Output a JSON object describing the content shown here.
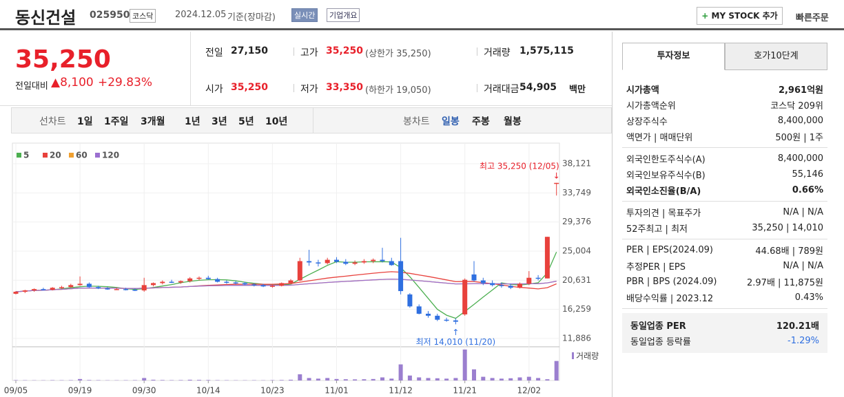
{
  "header": {
    "name": "동신건설",
    "code": "025950",
    "market": "코스닥",
    "date": "2024.12.05",
    "basis": "기준(장마감)",
    "realtime": "실시간",
    "overview": "기업개요",
    "mystock": "MY STOCK 추가",
    "quick": "빠른주문"
  },
  "quote": {
    "price": "35,250",
    "change_label": "전일대비",
    "change": "8,100",
    "change_pct": "+29.83%",
    "fields": [
      {
        "label": "전일",
        "value": "27,150"
      },
      {
        "label": "고가",
        "value": "35,250",
        "note": "(상한가 35,250)"
      },
      {
        "label": "거래량",
        "value": "1,575,115"
      },
      {
        "label": "시가",
        "value": "35,250"
      },
      {
        "label": "저가",
        "value": "33,350",
        "note": "(하한가 19,050)"
      },
      {
        "label": "거래대금",
        "value": "54,905",
        "unit": "백만"
      }
    ]
  },
  "tabs": {
    "periods": [
      "선차트",
      "1일",
      "1주일",
      "3개월",
      "1년",
      "3년",
      "5년",
      "10년"
    ],
    "candles": [
      "봉차트",
      "일봉",
      "주봉",
      "월봉"
    ]
  },
  "chart_data": {
    "type": "candlestick",
    "series": [
      {
        "name": "5",
        "color": "#4caf50"
      },
      {
        "name": "20",
        "color": "#e8413c"
      },
      {
        "name": "60",
        "color": "#f0a030"
      },
      {
        "name": "120",
        "color": "#9b6fd0"
      }
    ],
    "up_color": "#e8413c",
    "down_color": "#2f6fe0",
    "volume_color": "#9b7fcf",
    "categories": [
      "09/05",
      null,
      null,
      null,
      null,
      null,
      null,
      "09/19",
      null,
      null,
      null,
      null,
      null,
      null,
      "09/30",
      null,
      null,
      null,
      null,
      null,
      null,
      "10/14",
      null,
      null,
      null,
      null,
      null,
      null,
      "10/23",
      null,
      null,
      null,
      null,
      null,
      null,
      "11/01",
      null,
      null,
      null,
      null,
      null,
      null,
      "11/12",
      null,
      null,
      null,
      null,
      null,
      null,
      "11/21",
      null,
      null,
      null,
      null,
      null,
      null,
      "12/02",
      null,
      null,
      null
    ],
    "candles": [
      [
        18600,
        19000,
        18500,
        18900
      ],
      [
        18900,
        19200,
        18700,
        19100
      ],
      [
        19100,
        19400,
        18900,
        19300
      ],
      [
        19300,
        19500,
        19100,
        19200
      ],
      [
        19200,
        19600,
        19100,
        19500
      ],
      [
        19500,
        19800,
        19300,
        19600
      ],
      [
        19600,
        20100,
        19500,
        19900
      ],
      [
        19900,
        21200,
        19800,
        20100
      ],
      [
        20100,
        20300,
        19500,
        19600
      ],
      [
        19600,
        19800,
        19300,
        19400
      ],
      [
        19400,
        19600,
        19200,
        19300
      ],
      [
        19300,
        19500,
        19200,
        19300
      ],
      [
        19300,
        19500,
        19100,
        19200
      ],
      [
        19200,
        19400,
        19000,
        19100
      ],
      [
        19100,
        21000,
        18900,
        19900
      ],
      [
        19900,
        20300,
        19700,
        20200
      ],
      [
        20200,
        20600,
        20000,
        20400
      ],
      [
        20400,
        20700,
        20200,
        20300
      ],
      [
        20300,
        20600,
        20100,
        20500
      ],
      [
        20500,
        21100,
        20300,
        20900
      ],
      [
        20900,
        21200,
        20600,
        21000
      ],
      [
        21000,
        21300,
        20700,
        20800
      ],
      [
        20800,
        21000,
        20300,
        20400
      ],
      [
        20400,
        20600,
        20100,
        20300
      ],
      [
        20300,
        20500,
        20000,
        20200
      ],
      [
        20200,
        20400,
        19900,
        20000
      ],
      [
        20000,
        20200,
        19700,
        19900
      ],
      [
        19900,
        20100,
        19600,
        19700
      ],
      [
        19700,
        20000,
        19500,
        19800
      ],
      [
        19800,
        20300,
        19700,
        20200
      ],
      [
        20200,
        20800,
        20100,
        20600
      ],
      [
        20600,
        24000,
        20500,
        23500
      ],
      [
        23500,
        25200,
        22800,
        23300
      ],
      [
        23300,
        23700,
        22700,
        23200
      ],
      [
        23200,
        24000,
        23000,
        23700
      ],
      [
        23700,
        24100,
        23200,
        23400
      ],
      [
        23400,
        23800,
        22900,
        23100
      ],
      [
        23100,
        23600,
        22900,
        23300
      ],
      [
        23300,
        23800,
        23100,
        23500
      ],
      [
        23500,
        23900,
        23200,
        23700
      ],
      [
        23700,
        25500,
        23300,
        23500
      ],
      [
        23500,
        24000,
        22800,
        22900
      ],
      [
        23500,
        27000,
        18500,
        19000
      ],
      [
        18500,
        18700,
        16500,
        16700
      ],
      [
        16700,
        17000,
        15500,
        15600
      ],
      [
        15600,
        16000,
        15000,
        15300
      ],
      [
        15300,
        15600,
        14500,
        14700
      ],
      [
        14700,
        15000,
        14400,
        14600
      ],
      [
        14600,
        14900,
        14010,
        14400
      ],
      [
        15500,
        20900,
        15300,
        20700
      ],
      [
        21500,
        23500,
        20400,
        20600
      ],
      [
        20600,
        21000,
        19900,
        20200
      ],
      [
        20200,
        20600,
        19700,
        19900
      ],
      [
        19900,
        20300,
        19500,
        19800
      ],
      [
        19800,
        20100,
        19300,
        19500
      ],
      [
        19500,
        20300,
        19400,
        20100
      ],
      [
        20100,
        22000,
        19900,
        21000
      ],
      [
        21000,
        21400,
        20600,
        20900
      ],
      [
        20900,
        27150,
        20900,
        27150
      ],
      [
        35250,
        35250,
        33350,
        35250
      ]
    ],
    "volumes": [
      30000,
      25000,
      20000,
      20000,
      30000,
      25000,
      30000,
      120000,
      40000,
      30000,
      20000,
      20000,
      25000,
      30000,
      200000,
      60000,
      40000,
      30000,
      35000,
      60000,
      50000,
      40000,
      30000,
      25000,
      20000,
      20000,
      25000,
      20000,
      30000,
      40000,
      60000,
      500000,
      200000,
      150000,
      200000,
      120000,
      100000,
      90000,
      100000,
      120000,
      250000,
      150000,
      1300000,
      400000,
      250000,
      200000,
      180000,
      150000,
      200000,
      2500000,
      900000,
      300000,
      200000,
      150000,
      180000,
      250000,
      300000,
      200000,
      100000,
      1575115
    ],
    "ylim": [
      10845,
      38329
    ],
    "yticks": [
      {
        "value": 38121,
        "label": "38,121"
      },
      {
        "value": 33749,
        "label": "33,749"
      },
      {
        "value": 29376,
        "label": "29,376"
      },
      {
        "value": 25004,
        "label": "25,004"
      },
      {
        "value": 20631,
        "label": "20,631"
      },
      {
        "value": 16259,
        "label": "16,259"
      },
      {
        "value": 11886,
        "label": "11,886"
      }
    ],
    "grid": true,
    "annotations": {
      "high": "최고 35,250 (12/05)",
      "low": "최저 14,010 (11/20)"
    },
    "volume_label": "거래량"
  },
  "side": {
    "tabs": [
      "투자정보",
      "호가10단계"
    ],
    "sections": [
      [
        [
          "시가총액",
          "2,961억원"
        ],
        [
          "시가총액순위",
          "코스닥 209위"
        ],
        [
          "상장주식수",
          "8,400,000"
        ],
        [
          "액면가 | 매매단위",
          "500원 | 1주"
        ]
      ],
      [
        [
          "외국인한도주식수(A)",
          "8,400,000"
        ],
        [
          "외국인보유주식수(B)",
          "55,146"
        ],
        [
          "외국인소진율(B/A)",
          "0.66%"
        ]
      ],
      [
        [
          "투자의견 | 목표주가",
          "N/A | N/A"
        ],
        [
          "52주최고 | 최저",
          "35,250 | 14,010"
        ]
      ],
      [
        [
          "PER | EPS(2024.09)",
          "44.68배 | 789원"
        ],
        [
          "추정PER | EPS",
          "N/A | N/A"
        ],
        [
          "PBR | BPS (2024.09)",
          "2.97배 | 11,875원"
        ],
        [
          "배당수익률 | 2023.12",
          "0.43%"
        ]
      ],
      [
        [
          "동일업종 PER",
          "120.21배"
        ],
        [
          "동일업종 등락률",
          "-1.29%"
        ]
      ]
    ]
  }
}
